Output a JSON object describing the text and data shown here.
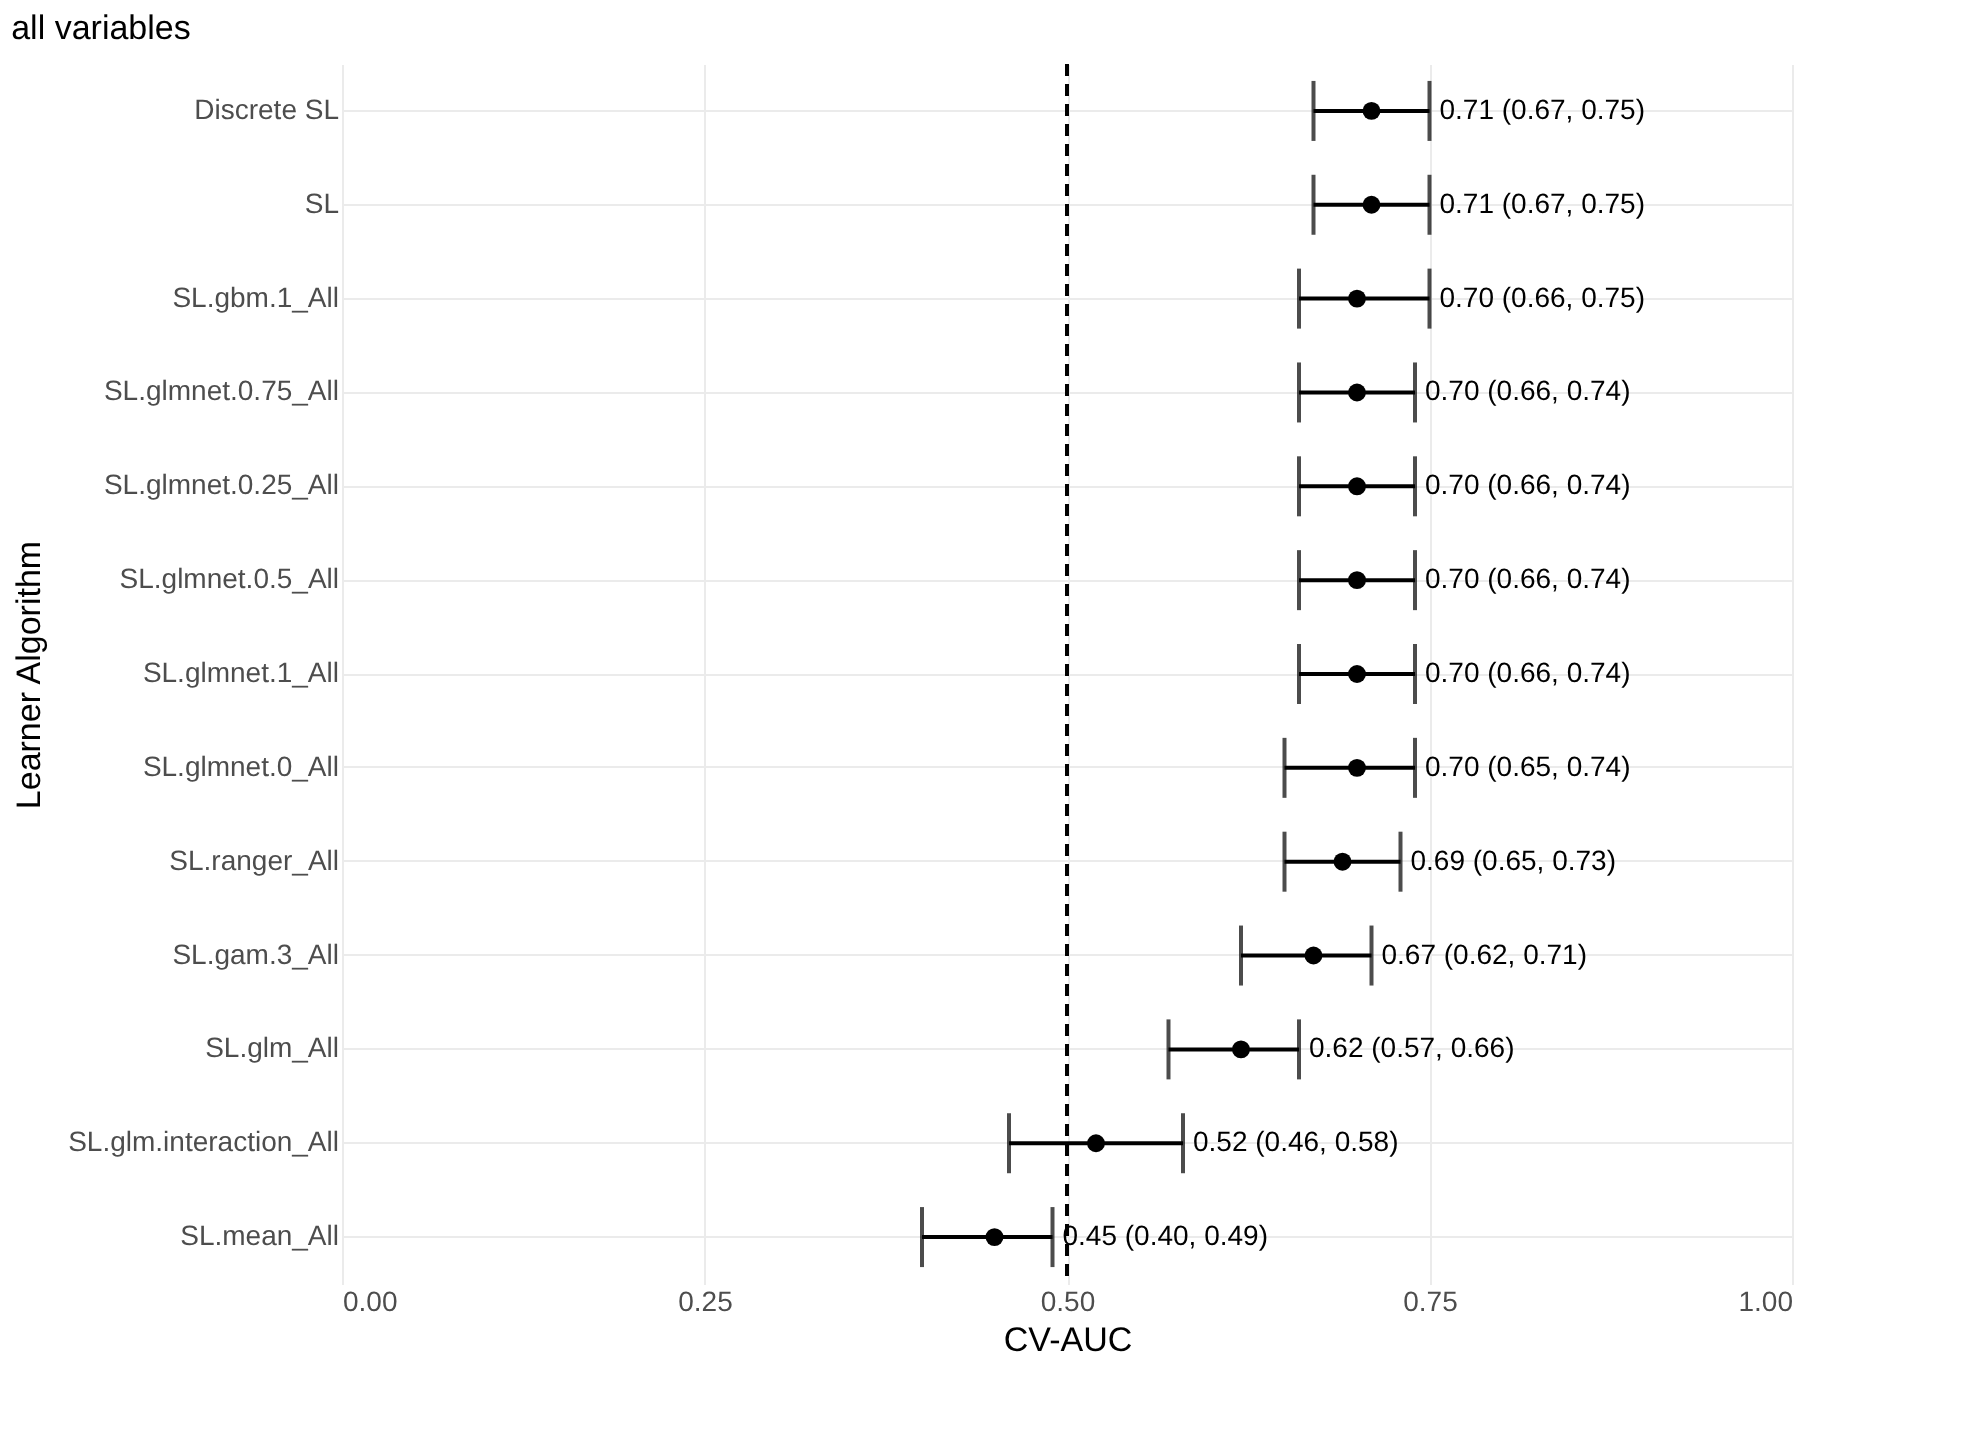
{
  "chart_data": {
    "type": "scatter",
    "title": "all variables",
    "xlabel": "CV-AUC",
    "ylabel": "Learner Algorithm",
    "orientation": "horizontal",
    "categories": [
      "Discrete SL",
      "SL",
      "SL.gbm.1_All",
      "SL.glmnet.0.75_All",
      "SL.glmnet.0.25_All",
      "SL.glmnet.0.5_All",
      "SL.glmnet.1_All",
      "SL.glmnet.0_All",
      "SL.ranger_All",
      "SL.gam.3_All",
      "SL.glm_All",
      "SL.glm.interaction_All",
      "SL.mean_All"
    ],
    "values": [
      0.71,
      0.71,
      0.7,
      0.7,
      0.7,
      0.7,
      0.7,
      0.7,
      0.69,
      0.67,
      0.62,
      0.52,
      0.45
    ],
    "errors": [
      [
        0.67,
        0.75
      ],
      [
        0.67,
        0.75
      ],
      [
        0.66,
        0.75
      ],
      [
        0.66,
        0.74
      ],
      [
        0.66,
        0.74
      ],
      [
        0.66,
        0.74
      ],
      [
        0.66,
        0.74
      ],
      [
        0.65,
        0.74
      ],
      [
        0.65,
        0.73
      ],
      [
        0.62,
        0.71
      ],
      [
        0.57,
        0.66
      ],
      [
        0.46,
        0.58
      ],
      [
        0.4,
        0.49
      ]
    ],
    "value_labels": [
      "0.71 (0.67, 0.75)",
      "0.71 (0.67, 0.75)",
      "0.70 (0.66, 0.75)",
      "0.70 (0.66, 0.74)",
      "0.70 (0.66, 0.74)",
      "0.70 (0.66, 0.74)",
      "0.70 (0.66, 0.74)",
      "0.70 (0.65, 0.74)",
      "0.69 (0.65, 0.73)",
      "0.67 (0.62, 0.71)",
      "0.62 (0.57, 0.66)",
      "0.52 (0.46, 0.58)",
      "0.45 (0.40, 0.49)"
    ],
    "color": "#000000",
    "marker": "circle",
    "xlim": [
      0,
      1
    ],
    "xticks": [
      {
        "value": 0,
        "label": "0.00"
      },
      {
        "value": 0.25,
        "label": "0.25"
      },
      {
        "value": 0.5,
        "label": "0.50"
      },
      {
        "value": 0.75,
        "label": "0.75"
      },
      {
        "value": 1,
        "label": "1.00"
      }
    ],
    "ref_lines": [
      {
        "axis": "x",
        "value": 0.5,
        "line_style": "dashed",
        "color": "#000000"
      }
    ],
    "grid": true
  }
}
